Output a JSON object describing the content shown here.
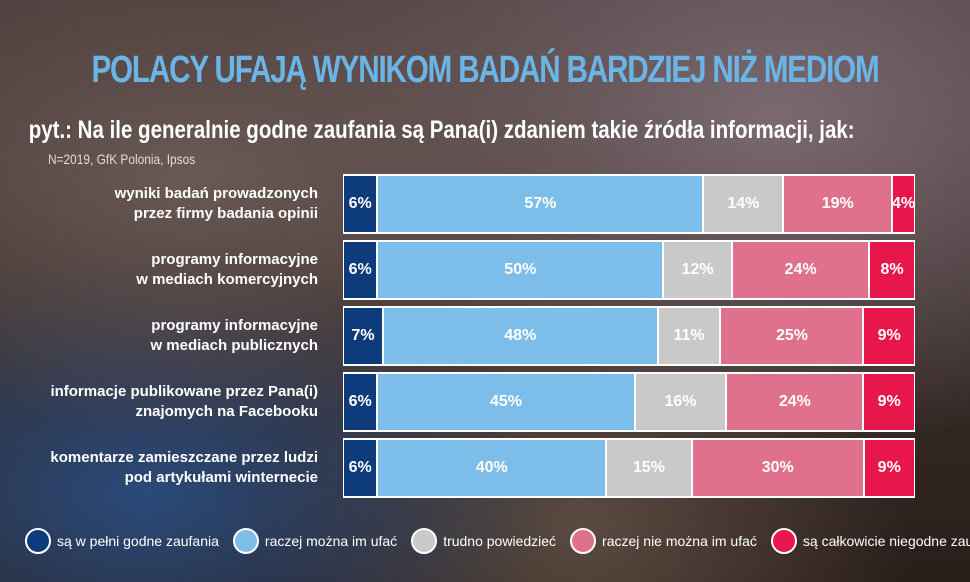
{
  "chart_data": {
    "type": "bar",
    "stacked": true,
    "orientation": "horizontal",
    "title": "POLACY UFAJĄ WYNIKOM BADAŃ BARDZIEJ NIŻ MEDIOM",
    "subtitle": "pyt.: Na ile generalnie godne zaufania są Pana(i) zdaniem takie źródła informacji, jak:",
    "source": "N=2019, GfK Polonia, Ipsos",
    "categories": [
      [
        "wyniki badań prowadzonych",
        "przez firmy badania opinii"
      ],
      [
        "programy informacyjne",
        "w mediach komercyjnych"
      ],
      [
        "programy informacyjne",
        "w mediach publicznych"
      ],
      [
        "informacje publikowane przez Pana(i)",
        "znajomych na Facebooku"
      ],
      [
        "komentarze zamieszczane przez ludzi",
        "pod artykułami winternecie"
      ]
    ],
    "series": [
      {
        "name": "są w pełni godne zaufania",
        "color": "#0e3b7c",
        "values": [
          6,
          6,
          7,
          6,
          6
        ]
      },
      {
        "name": "raczej można im ufać",
        "color": "#7cbde9",
        "values": [
          57,
          50,
          48,
          45,
          40
        ]
      },
      {
        "name": "trudno powiedzieć",
        "color": "#c9c9c9",
        "values": [
          14,
          12,
          11,
          16,
          15
        ]
      },
      {
        "name": "raczej nie można im ufać",
        "color": "#e0718c",
        "values": [
          19,
          24,
          25,
          24,
          30
        ]
      },
      {
        "name": "są całkowicie niegodne zaufania",
        "color": "#e8174b",
        "values": [
          4,
          8,
          9,
          9,
          9
        ]
      }
    ],
    "unit": "%",
    "legend": "bottom"
  }
}
